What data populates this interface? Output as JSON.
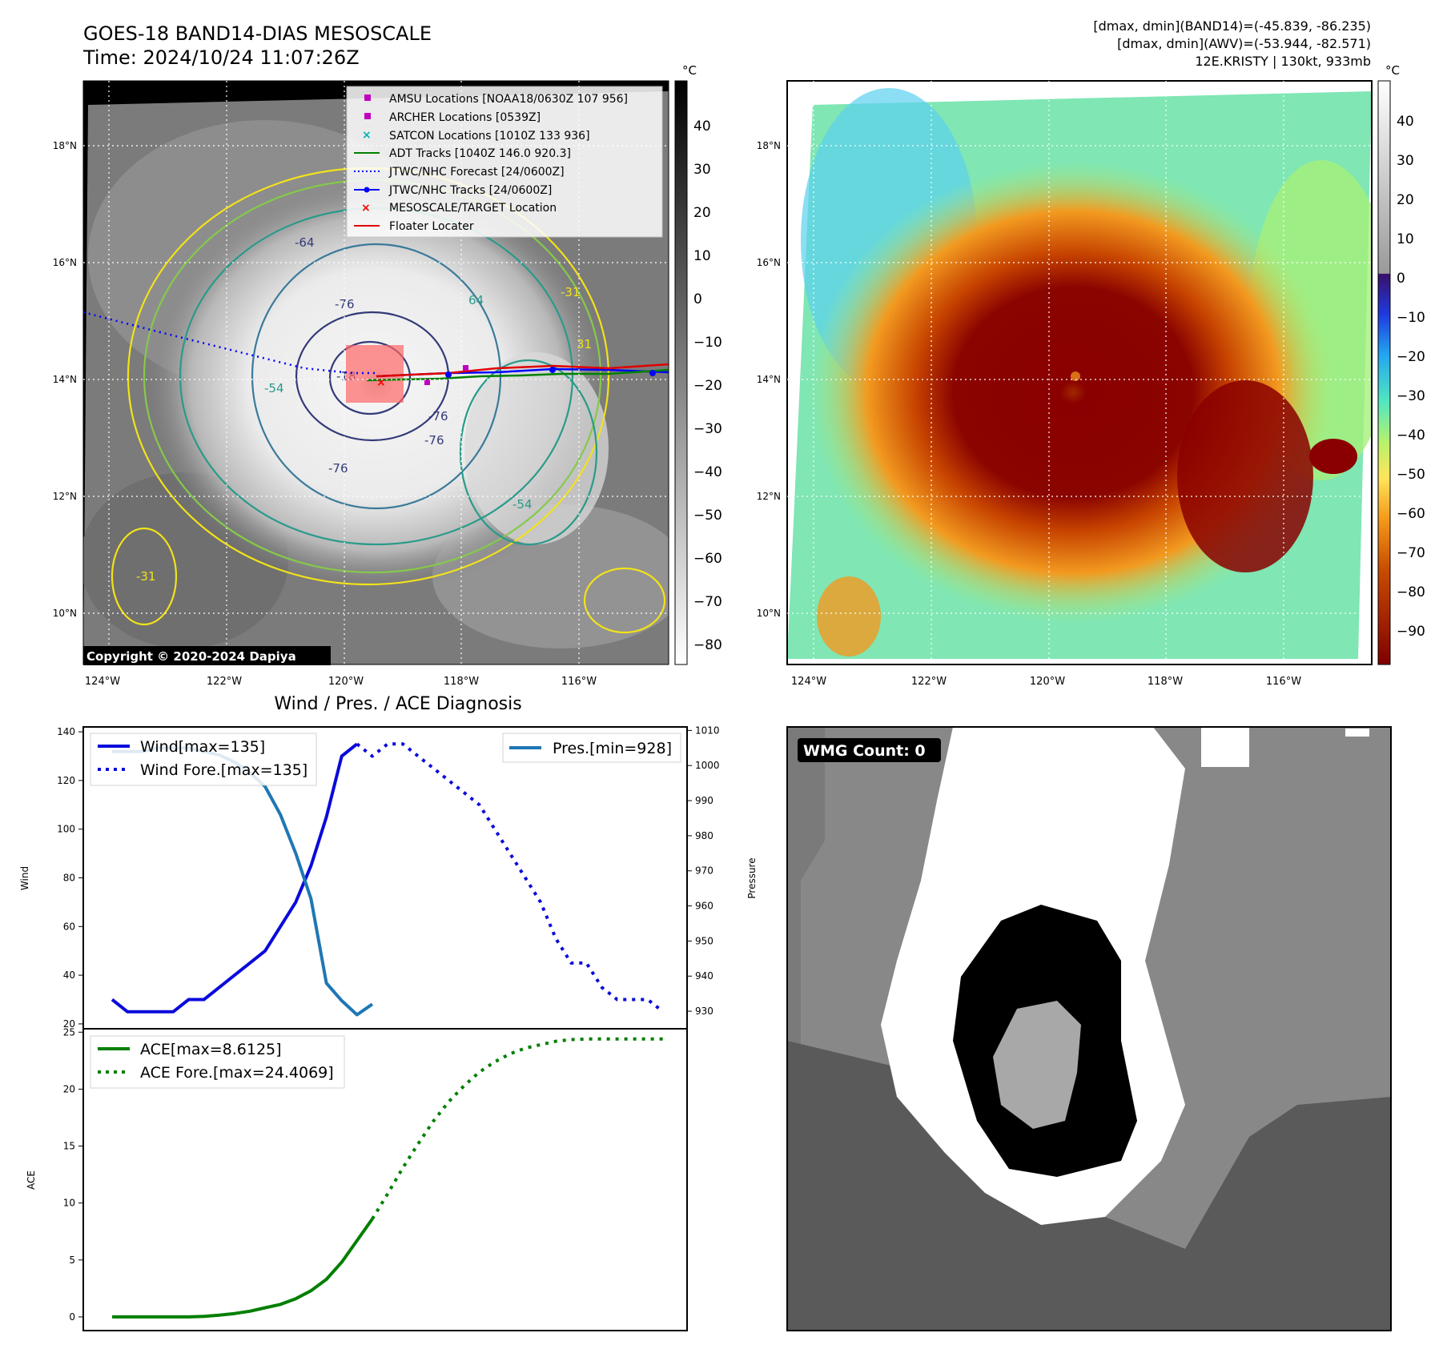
{
  "header": {
    "title": "GOES-18 BAND14-DIAS MESOSCALE",
    "time": "Time: 2024/10/24 11:07:26Z",
    "stats": [
      "[dmax, dmin](BAND14)=(-45.839, -86.235)",
      "[dmax, dmin](AWV)=(-53.944, -82.571)",
      "12E.KRISTY | 130kt, 933mb"
    ]
  },
  "map_axes": {
    "lat_labels": [
      "18°N",
      "16°N",
      "14°N",
      "12°N",
      "10°N"
    ],
    "lon_labels": [
      "124°W",
      "122°W",
      "120°W",
      "118°W",
      "116°W"
    ]
  },
  "colorbars": {
    "unit": "°C",
    "gray_ticks": [
      "40",
      "30",
      "20",
      "10",
      "0",
      "−10",
      "−20",
      "−30",
      "−40",
      "−50",
      "−60",
      "−70",
      "−80"
    ],
    "color_ticks": [
      "40",
      "30",
      "20",
      "10",
      "0",
      "−10",
      "−20",
      "−30",
      "−40",
      "−50",
      "−60",
      "−70",
      "−80",
      "−90"
    ]
  },
  "ir_panel": {
    "copyright": "Copyright © 2020-2024 Dapiya",
    "legend": [
      "AMSU Locations [NOAA18/0630Z 107 956]",
      "ARCHER Locations [0539Z]",
      "SATCON Locations [1010Z 133 936]",
      "ADT Tracks [1040Z 146.0 920.3]",
      "JTWC/NHC Forecast [24/0600Z]",
      "JTWC/NHC Tracks [24/0600Z]",
      "MESOSCALE/TARGET Location",
      "Floater Locater"
    ],
    "contour_labels": [
      "-76",
      "-76",
      "-76",
      "-64",
      "64",
      "-54",
      "-18",
      "-76",
      "-54",
      "-31",
      "31",
      "-31"
    ]
  },
  "wmg_panel": {
    "label": "WMG Count: 0"
  },
  "chart_data": [
    {
      "type": "line",
      "title": "Wind / Pres. / ACE Diagnosis",
      "ylabel": "Wind",
      "y2label": "Pressure",
      "ylim": [
        18,
        142
      ],
      "y2lim": [
        925,
        1011
      ],
      "yticks": [
        140,
        120,
        100,
        80,
        60,
        40,
        20
      ],
      "y2ticks": [
        1010,
        1000,
        990,
        980,
        970,
        960,
        950,
        940,
        930
      ],
      "x_count": 37,
      "series": [
        {
          "name": "Wind[max=135]",
          "color": "#0a0adb",
          "style": "solid",
          "axis": "left",
          "x": [
            0,
            1,
            2,
            3,
            4,
            5,
            6,
            7,
            8,
            9,
            10,
            11,
            12,
            13,
            14,
            15,
            16
          ],
          "values": [
            30,
            25,
            25,
            25,
            25,
            30,
            30,
            35,
            40,
            45,
            50,
            60,
            70,
            85,
            105,
            130,
            135
          ]
        },
        {
          "name": "Wind Fore.[max=135]",
          "color": "#0a0adb",
          "style": "dotted",
          "axis": "left",
          "x": [
            16,
            17,
            18,
            19,
            20,
            21,
            22,
            23,
            24,
            25,
            26,
            27,
            28,
            29,
            30,
            31,
            32,
            33,
            34,
            35,
            36
          ],
          "values": [
            135,
            130,
            135,
            135,
            130,
            125,
            120,
            115,
            110,
            100,
            90,
            80,
            70,
            55,
            45,
            45,
            35,
            30,
            30,
            30,
            25
          ]
        },
        {
          "name": "Pres.[min=928]",
          "color": "#1f77b4",
          "style": "solid",
          "axis": "right",
          "x": [
            0,
            1,
            2,
            3,
            4,
            5,
            6,
            7,
            8,
            9,
            10,
            11,
            12,
            13,
            14,
            15,
            16,
            17
          ],
          "values": [
            1004,
            1004,
            1004,
            1005,
            1005,
            1005,
            1004,
            1003,
            1001,
            998,
            994,
            986,
            975,
            962,
            938,
            933,
            929,
            932
          ]
        }
      ]
    },
    {
      "type": "line",
      "ylabel": "ACE",
      "ylim": [
        -1.2,
        25.3
      ],
      "yticks": [
        25,
        20,
        15,
        10,
        5,
        0
      ],
      "x_count": 37,
      "series": [
        {
          "name": "ACE[max=8.6125]",
          "color": "#007f00",
          "style": "solid",
          "x": [
            0,
            1,
            2,
            3,
            4,
            5,
            6,
            7,
            8,
            9,
            10,
            11,
            12,
            13,
            14,
            15,
            16,
            17
          ],
          "values": [
            0,
            0,
            0,
            0,
            0,
            0,
            0.05,
            0.15,
            0.3,
            0.5,
            0.8,
            1.1,
            1.6,
            2.3,
            3.3,
            4.8,
            6.7,
            8.6
          ]
        },
        {
          "name": "ACE Fore.[max=24.4069]",
          "color": "#007f00",
          "style": "dotted",
          "x": [
            17,
            18,
            19,
            20,
            21,
            22,
            23,
            24,
            25,
            26,
            27,
            28,
            29,
            30,
            31,
            32,
            33,
            34,
            35,
            36
          ],
          "values": [
            8.6,
            10.8,
            13.1,
            15.2,
            17.2,
            18.9,
            20.3,
            21.5,
            22.4,
            23.1,
            23.6,
            23.9,
            24.2,
            24.35,
            24.4,
            24.4,
            24.4,
            24.4,
            24.4,
            24.4
          ]
        }
      ]
    }
  ]
}
